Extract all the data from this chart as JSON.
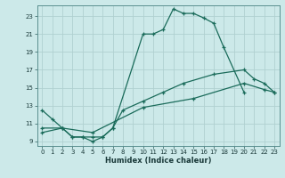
{
  "xlabel": "Humidex (Indice chaleur)",
  "ylabel": "",
  "bg_color": "#cce9e9",
  "grid_color": "#b0d0d0",
  "line_color": "#1a6b5a",
  "xlim": [
    -0.5,
    23.5
  ],
  "ylim": [
    8.5,
    24.2
  ],
  "xticks": [
    0,
    1,
    2,
    3,
    4,
    5,
    6,
    7,
    8,
    9,
    10,
    11,
    12,
    13,
    14,
    15,
    16,
    17,
    18,
    19,
    20,
    21,
    22,
    23
  ],
  "yticks": [
    9,
    11,
    13,
    15,
    17,
    19,
    21,
    23
  ],
  "line1_x": [
    0,
    1,
    2,
    3,
    4,
    5,
    6,
    7,
    10,
    11,
    12,
    13,
    14,
    15,
    16,
    17,
    18,
    20
  ],
  "line1_y": [
    12.5,
    11.5,
    10.5,
    9.5,
    9.5,
    9.0,
    9.5,
    10.5,
    21.0,
    21.0,
    21.5,
    23.8,
    23.3,
    23.3,
    22.8,
    22.2,
    19.5,
    14.5
  ],
  "line2_x": [
    0,
    2,
    3,
    4,
    5,
    6,
    7,
    8,
    10,
    12,
    14,
    17,
    20,
    21,
    22,
    23
  ],
  "line2_y": [
    10.5,
    10.5,
    9.5,
    9.5,
    9.5,
    9.5,
    10.5,
    12.5,
    13.5,
    14.5,
    15.5,
    16.5,
    17.0,
    16.0,
    15.5,
    14.5
  ],
  "line3_x": [
    0,
    2,
    5,
    10,
    15,
    20,
    22,
    23
  ],
  "line3_y": [
    10.0,
    10.5,
    10.0,
    12.8,
    13.8,
    15.5,
    14.8,
    14.5
  ]
}
